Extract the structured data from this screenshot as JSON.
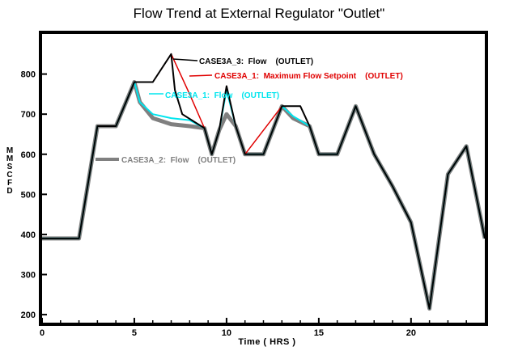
{
  "chart_data": {
    "type": "line",
    "title": "Flow Trend at External Regulator \"Outlet\"",
    "xlabel": "Time ( HRS )",
    "ylabel": "MMSCFD",
    "xlim": [
      0,
      24
    ],
    "ylim": [
      180,
      900
    ],
    "xticks": [
      0,
      5,
      10,
      15,
      20
    ],
    "yticks": [
      200,
      300,
      400,
      500,
      600,
      700,
      800
    ],
    "grid": false,
    "series": [
      {
        "name": "CASE3A_2:  Flow    (OUTLET)",
        "color": "#808080",
        "x": [
          0,
          2,
          3,
          4,
          5,
          5.3,
          6,
          7,
          8,
          8.8,
          9.2,
          9.6,
          10,
          10.5,
          11,
          12,
          13,
          13.6,
          14.5,
          15,
          16,
          17,
          18,
          19,
          20,
          21,
          22,
          23,
          24
        ],
        "y": [
          390,
          390,
          670,
          670,
          780,
          730,
          690,
          675,
          670,
          665,
          600,
          660,
          700,
          670,
          600,
          600,
          720,
          690,
          670,
          600,
          600,
          720,
          600,
          520,
          430,
          215,
          550,
          620,
          390
        ]
      },
      {
        "name": "CASE3A_1:  Flow    (OUTLET)",
        "color": "#00e5ee",
        "x": [
          0,
          2,
          3,
          4,
          5,
          5.3,
          6,
          7,
          8,
          8.8,
          9.2,
          9.6,
          10,
          10.5,
          11,
          12,
          13,
          13.6,
          14.5,
          15,
          16,
          17,
          18,
          19,
          20,
          21,
          22,
          23,
          24
        ],
        "y": [
          390,
          390,
          670,
          670,
          780,
          730,
          700,
          690,
          685,
          665,
          600,
          660,
          760,
          670,
          600,
          600,
          720,
          695,
          670,
          600,
          600,
          720,
          600,
          520,
          430,
          215,
          550,
          620,
          390
        ]
      },
      {
        "name": "CASE3A_1:  Maximum Flow Setpoint    (OUTLET)",
        "color": "#e00000",
        "x": [
          5,
          6,
          7,
          8,
          8.8,
          9.2,
          9.6,
          10,
          10.5,
          11,
          13,
          14,
          14.5
        ],
        "y": [
          780,
          780,
          850,
          750,
          665,
          600,
          660,
          770,
          670,
          600,
          720,
          720,
          670
        ]
      },
      {
        "name": "CASE3A_3:  Flow    (OUTLET)",
        "color": "#000000",
        "x": [
          0,
          2,
          3,
          4,
          5,
          6,
          7,
          7.2,
          7.6,
          8.8,
          9.2,
          9.6,
          10,
          10.5,
          11,
          12,
          13,
          14,
          14.5,
          15,
          16,
          17,
          18,
          19,
          20,
          21,
          22,
          23,
          24
        ],
        "y": [
          390,
          390,
          670,
          670,
          780,
          780,
          850,
          760,
          700,
          665,
          600,
          660,
          770,
          670,
          600,
          600,
          720,
          720,
          670,
          600,
          600,
          720,
          600,
          520,
          430,
          215,
          550,
          620,
          390
        ]
      }
    ],
    "legend_labels": [
      {
        "text": "CASE3A_3:  Flow    (OUTLET)",
        "color": "#000000"
      },
      {
        "text": "CASE3A_1:  Maximum Flow Setpoint    (OUTLET)",
        "color": "#e00000"
      },
      {
        "text": "CASE3A_1:  Flow    (OUTLET)",
        "color": "#00e5ee"
      },
      {
        "text": "CASE3A_2:  Flow    (OUTLET)",
        "color": "#808080"
      }
    ]
  }
}
